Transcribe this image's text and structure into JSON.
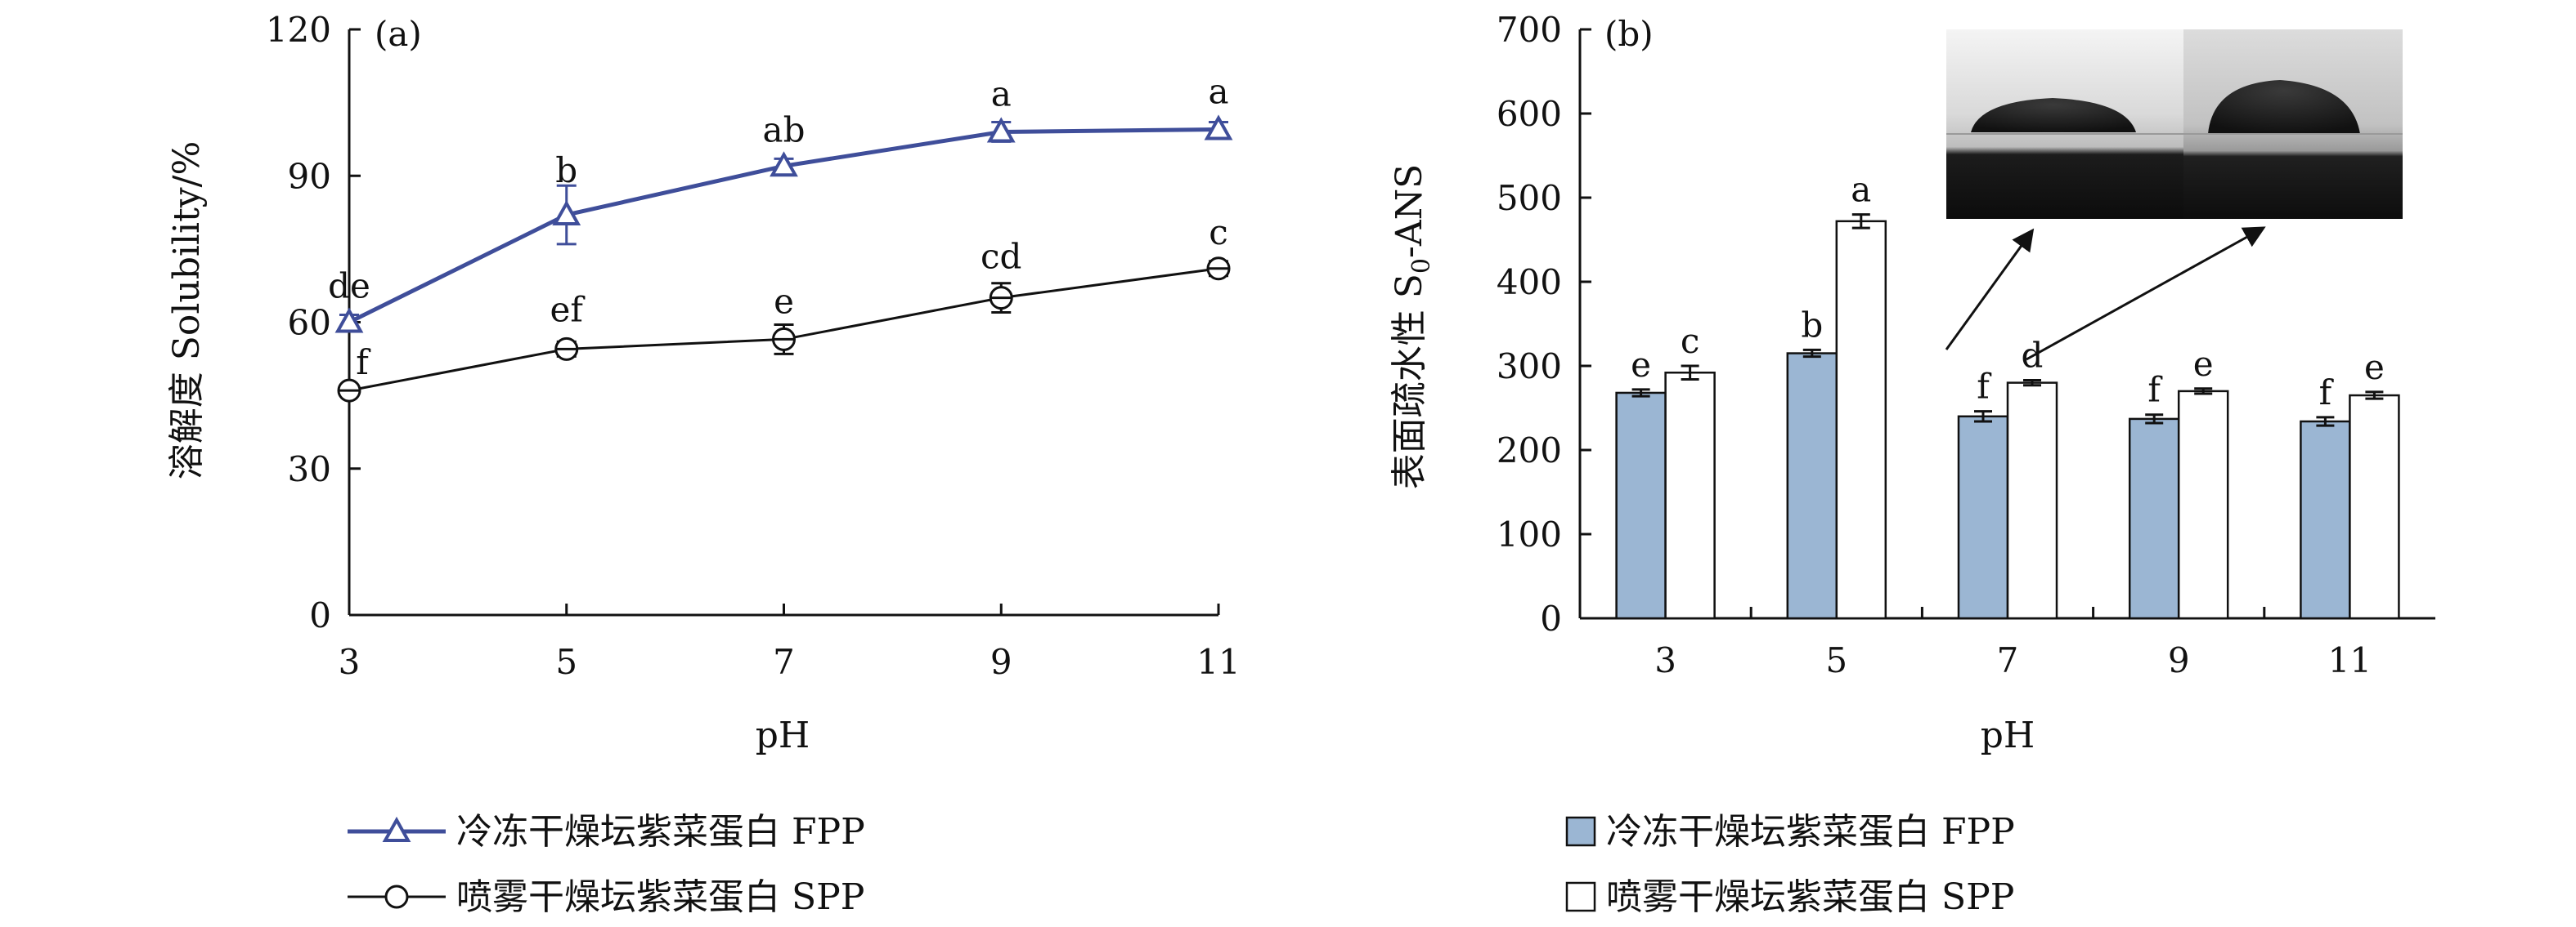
{
  "chart_data": [
    {
      "panel": "(a)",
      "type": "line",
      "ylabel": "溶解度 Solubility/%",
      "xlabel": "pH",
      "x": [
        3,
        5,
        7,
        9,
        11
      ],
      "xticks": [
        "3",
        "5",
        "7",
        "9",
        "11"
      ],
      "ylim": [
        0,
        120
      ],
      "yticks": [
        "0",
        "30",
        "60",
        "90",
        "120"
      ],
      "grid": false,
      "legend_position": "bottom",
      "series": [
        {
          "name": "冷冻干燥坛紫菜蛋白 FPP",
          "marker": "triangle",
          "color": "#3F4E9A",
          "values": [
            60,
            82,
            92,
            99,
            99.5
          ],
          "errors": [
            1.5,
            6,
            1.5,
            2,
            1.5
          ],
          "letters": [
            "de",
            "b",
            "ab",
            "a",
            "a"
          ]
        },
        {
          "name": "喷雾干燥坛紫菜蛋白 SPP",
          "marker": "circle",
          "color": "#111111",
          "values": [
            46,
            54.5,
            56.5,
            65,
            71
          ],
          "errors": [
            1,
            1.5,
            3,
            3,
            1.5
          ],
          "letters": [
            "f",
            "ef",
            "e",
            "cd",
            "c"
          ]
        }
      ]
    },
    {
      "panel": "(b)",
      "type": "bar",
      "ylabel_cn": "表面疏水性",
      "ylabel_en": "S",
      "ylabel_sub": "0",
      "ylabel_suffix": "-ANS",
      "xlabel": "pH",
      "categories": [
        "3",
        "5",
        "7",
        "9",
        "11"
      ],
      "ylim": [
        0,
        700
      ],
      "yticks": [
        "0",
        "100",
        "200",
        "300",
        "400",
        "500",
        "600",
        "700"
      ],
      "grid": false,
      "legend_position": "bottom",
      "series": [
        {
          "name": "冷冻干燥坛紫菜蛋白 FPP",
          "color": "#9BB6D3",
          "values": [
            268,
            315,
            240,
            237,
            234
          ],
          "errors": [
            4,
            4,
            6,
            5,
            5
          ],
          "letters": [
            "e",
            "b",
            "f",
            "f",
            "f"
          ]
        },
        {
          "name": "喷雾干燥坛紫菜蛋白 SPP",
          "color": "#FFFFFF",
          "values": [
            292,
            472,
            280,
            270,
            265
          ],
          "errors": [
            8,
            8,
            3,
            3,
            4
          ],
          "letters": [
            "c",
            "a",
            "d",
            "e",
            "e"
          ]
        }
      ]
    }
  ]
}
